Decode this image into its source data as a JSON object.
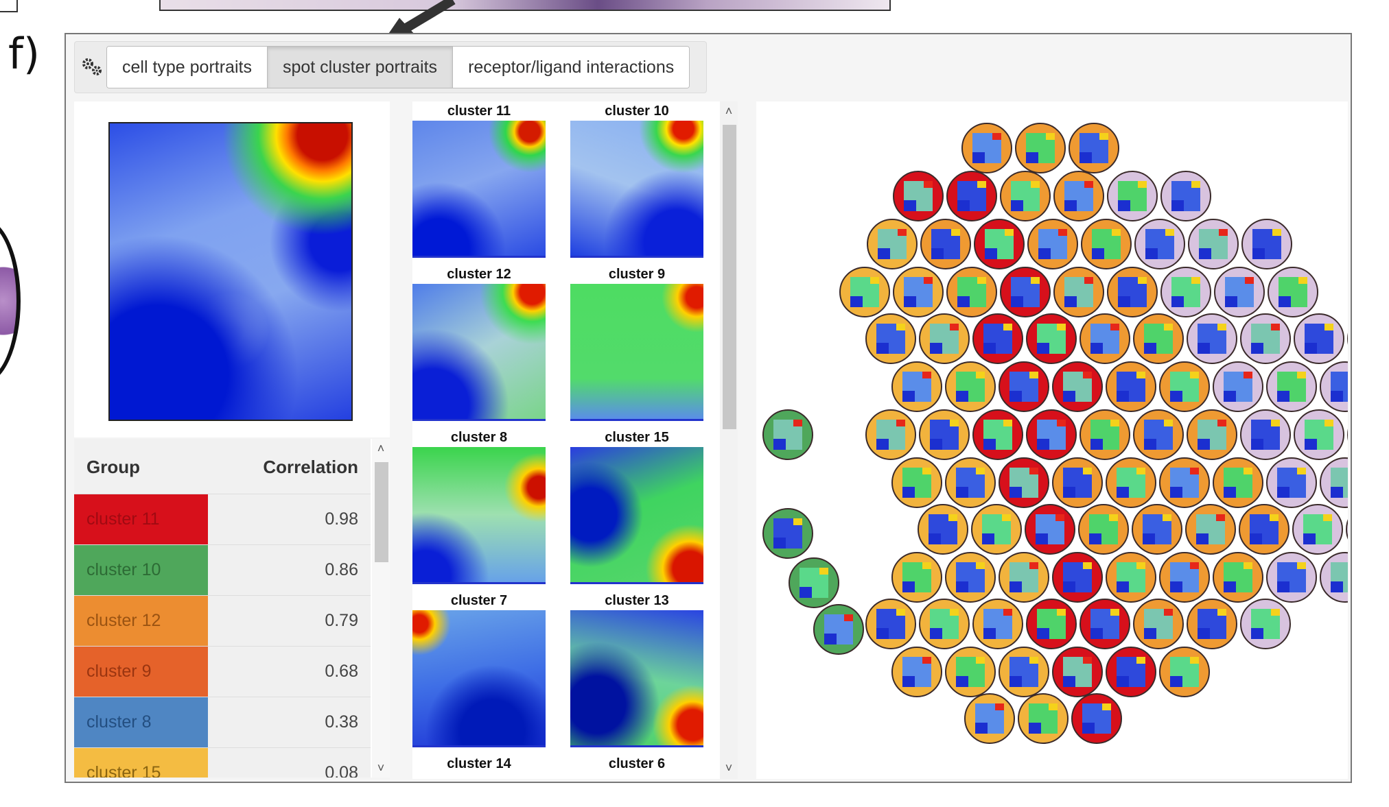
{
  "figure": {
    "panel_letter": "f)"
  },
  "toolbar": {
    "tabs": [
      {
        "label": "cell type portraits",
        "active": false
      },
      {
        "label": "spot cluster portraits",
        "active": true
      },
      {
        "label": "receptor/ligand interactions",
        "active": false
      }
    ]
  },
  "table": {
    "header_group": "Group",
    "header_correlation": "Correlation",
    "rows": [
      {
        "group": "cluster 11",
        "correlation": "0.98",
        "color": "#d7101b",
        "text_color": "#a00a12"
      },
      {
        "group": "cluster 10",
        "correlation": "0.86",
        "color": "#4fa75b",
        "text_color": "#2d6b35"
      },
      {
        "group": "cluster 12",
        "correlation": "0.79",
        "color": "#ec8d31",
        "text_color": "#9a5312"
      },
      {
        "group": "cluster 9",
        "correlation": "0.68",
        "color": "#e5622a",
        "text_color": "#9a3510"
      },
      {
        "group": "cluster 8",
        "correlation": "0.38",
        "color": "#4f86c3",
        "text_color": "#234e80"
      },
      {
        "group": "cluster 15",
        "correlation": "0.08",
        "color": "#f4bc42",
        "text_color": "#8a6410"
      }
    ]
  },
  "portrait_grid": [
    {
      "label": "cluster 11"
    },
    {
      "label": "cluster 10"
    },
    {
      "label": "cluster 12"
    },
    {
      "label": "cluster 9"
    },
    {
      "label": "cluster 8"
    },
    {
      "label": "cluster 15"
    },
    {
      "label": "cluster 7"
    },
    {
      "label": "cluster 13"
    },
    {
      "label": "cluster 14"
    },
    {
      "label": "cluster 6"
    }
  ],
  "spot_colors": {
    "red": "#d7101b",
    "orange": "#ef9a32",
    "gold": "#f2b33d",
    "lavender": "#d8c3df",
    "green": "#4fa75b"
  },
  "icons": {
    "gear": "gear-icon",
    "scroll_up": "chevron-up-icon",
    "scroll_down": "chevron-down-icon"
  }
}
